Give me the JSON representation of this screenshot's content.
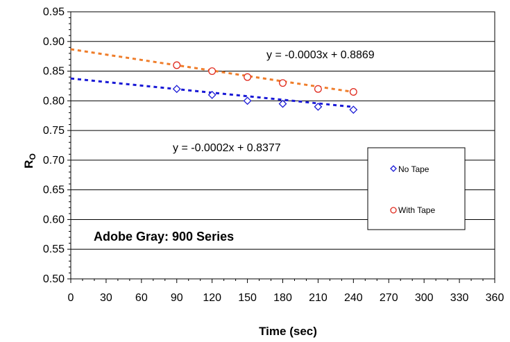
{
  "chart_data": {
    "type": "scatter",
    "title": "",
    "xlabel": "Time (sec)",
    "ylabel": {
      "main": "R",
      "sub": "O"
    },
    "xlim": [
      0,
      360
    ],
    "ylim": [
      0.5,
      0.95
    ],
    "x_ticks": [
      "0",
      "30",
      "60",
      "90",
      "120",
      "150",
      "180",
      "210",
      "240",
      "270",
      "300",
      "330",
      "360"
    ],
    "y_ticks": [
      "0.50",
      "0.55",
      "0.60",
      "0.65",
      "0.70",
      "0.75",
      "0.80",
      "0.85",
      "0.90",
      "0.95"
    ],
    "grid": "horizontal",
    "legend_position": "right",
    "annotation": "Adobe Gray:  900 Series",
    "series": [
      {
        "name": "No Tape",
        "marker": "diamond",
        "color": "#1a1ad6",
        "x": [
          90,
          120,
          150,
          180,
          210,
          240
        ],
        "y": [
          0.82,
          0.81,
          0.8,
          0.795,
          0.79,
          0.785
        ],
        "trendline": {
          "slope": -0.0002,
          "intercept": 0.8377,
          "color": "#1a1ad6",
          "equation": "y = -0.0002x + 0.8377"
        }
      },
      {
        "name": "With Tape",
        "marker": "circle",
        "color": "#e02a1e",
        "x": [
          90,
          120,
          150,
          180,
          210,
          240
        ],
        "y": [
          0.86,
          0.85,
          0.84,
          0.83,
          0.82,
          0.815
        ],
        "trendline": {
          "slope": -0.0003,
          "intercept": 0.8869,
          "color": "#ef7d2a",
          "equation": "y = -0.0003x + 0.8869"
        }
      }
    ]
  }
}
